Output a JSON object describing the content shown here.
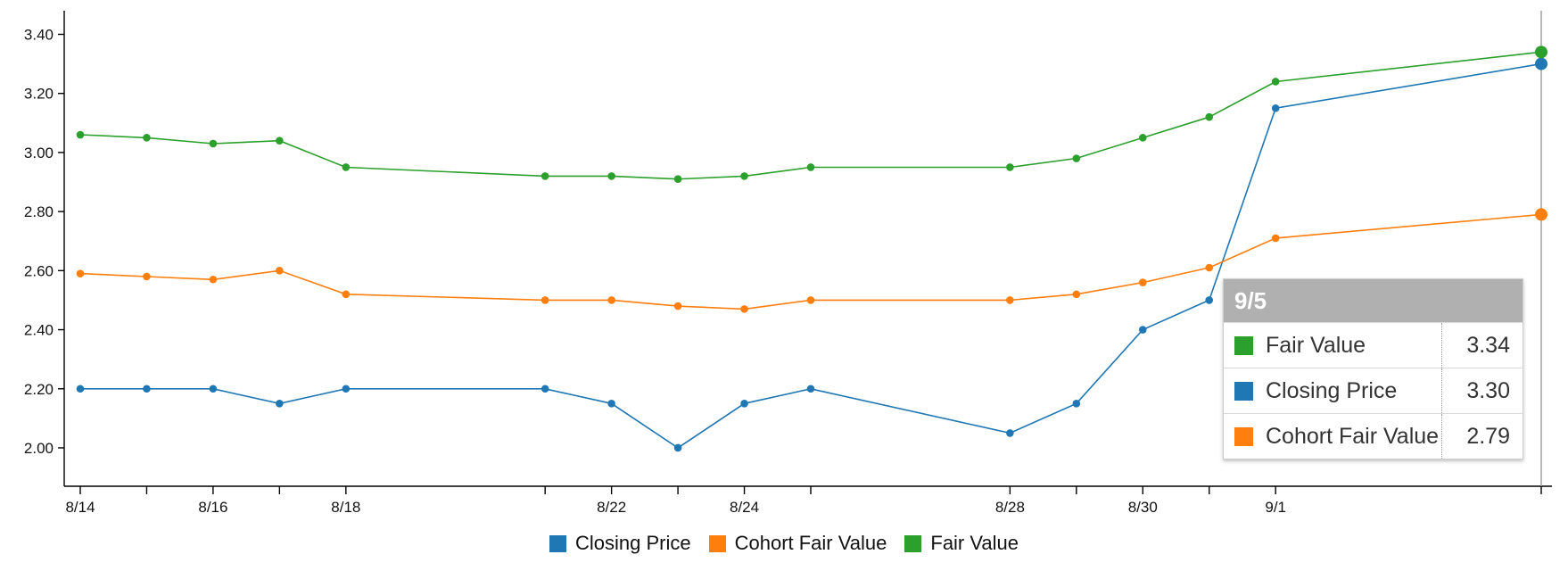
{
  "chart_data": {
    "type": "line",
    "x": [
      "8/14",
      "8/15",
      "8/16",
      "8/17",
      "8/18",
      "8/21",
      "8/22",
      "8/23",
      "8/24",
      "8/25",
      "8/28",
      "8/29",
      "8/30",
      "8/31",
      "9/1",
      "9/5"
    ],
    "x_tick_labels": [
      "8/14",
      "8/16",
      "8/18",
      "8/22",
      "8/24",
      "8/28",
      "8/30",
      "9/1"
    ],
    "y_ticks": [
      "2.00",
      "2.20",
      "2.40",
      "2.60",
      "2.80",
      "3.00",
      "3.20",
      "3.40"
    ],
    "ylim": [
      1.87,
      3.48
    ],
    "title": "",
    "xlabel": "",
    "ylabel": "",
    "series": [
      {
        "name": "Closing Price",
        "color": "#1f77b4",
        "values": [
          2.2,
          2.2,
          2.2,
          2.15,
          2.2,
          2.2,
          2.15,
          2.0,
          2.15,
          2.2,
          2.05,
          2.15,
          2.4,
          2.5,
          3.15,
          3.3
        ]
      },
      {
        "name": "Cohort Fair Value",
        "color": "#ff7f0e",
        "values": [
          2.59,
          2.58,
          2.57,
          2.6,
          2.52,
          2.5,
          2.5,
          2.48,
          2.47,
          2.5,
          2.5,
          2.52,
          2.56,
          2.61,
          2.71,
          2.79
        ]
      },
      {
        "name": "Fair Value",
        "color": "#2ca02c",
        "values": [
          3.06,
          3.05,
          3.03,
          3.04,
          2.95,
          2.92,
          2.92,
          2.91,
          2.92,
          2.95,
          2.95,
          2.98,
          3.05,
          3.12,
          3.24,
          3.34
        ]
      }
    ],
    "grid": false,
    "legend_position": "bottom"
  },
  "tooltip": {
    "title": "9/5",
    "rows": [
      {
        "label": "Fair Value",
        "value": "3.34",
        "color": "#2ca02c"
      },
      {
        "label": "Closing Price",
        "value": "3.30",
        "color": "#1f77b4"
      },
      {
        "label": "Cohort Fair Value",
        "value": "2.79",
        "color": "#ff7f0e"
      }
    ]
  },
  "legend": [
    {
      "label": "Closing Price",
      "color": "#1f77b4"
    },
    {
      "label": "Cohort Fair Value",
      "color": "#ff7f0e"
    },
    {
      "label": "Fair Value",
      "color": "#2ca02c"
    }
  ]
}
